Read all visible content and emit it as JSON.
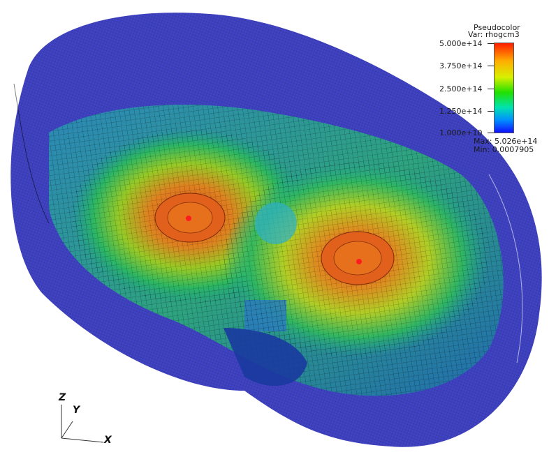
{
  "image": {
    "subject": "3D volume rendering of a binary neutron star density field",
    "colors": {
      "outer_shell": "#1a1fb0",
      "core_hot": "#e55a10",
      "core_center": "#ff1e1e",
      "mid": "#22c060",
      "mesh": "#000000"
    }
  },
  "legend": {
    "title": "Pseudocolor",
    "var": "Var: rhogcm3",
    "ticks": [
      "5.000e+14",
      "3.750e+14",
      "2.500e+14",
      "1.250e+14",
      "1.000e+10"
    ],
    "max": "Max:  5.026e+14",
    "min": "Min:  0.0007905"
  },
  "axes": {
    "z": "Z",
    "y": "Y",
    "x": "X"
  }
}
